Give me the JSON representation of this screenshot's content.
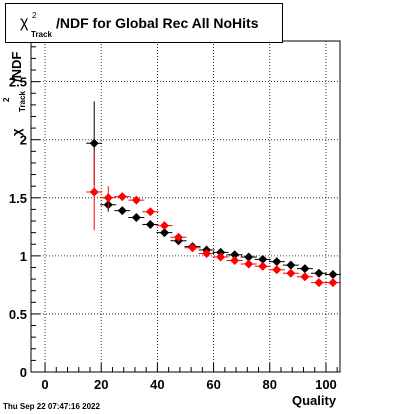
{
  "title": {
    "symbol": "χ",
    "superscript": "2",
    "subscript": "Track",
    "text": "/NDF for Global Rec All NoHits"
  },
  "xlabel": "Quality",
  "ylabel": {
    "symbol": "χ",
    "superscript": "2",
    "subscript": "Track",
    "text": "/NDF"
  },
  "timestamp": "Thu Sep 22 07:47:16 2022",
  "colors": {
    "series_a": "#000000",
    "series_b": "#ff0000",
    "grid": "#000000"
  },
  "chart_data": {
    "type": "scatter",
    "title": "χ²_Track/NDF for Global Rec All NoHits",
    "xlabel": "Quality",
    "ylabel": "χ²_Track/NDF",
    "xlim": [
      -5,
      105
    ],
    "ylim": [
      0,
      2.85
    ],
    "xticks": [
      0,
      20,
      40,
      60,
      80,
      100
    ],
    "yticks": [
      0,
      0.5,
      1,
      1.5,
      2,
      2.5
    ],
    "xtick_labels": [
      "0",
      "20",
      "40",
      "60",
      "80",
      "100"
    ],
    "ytick_labels": [
      "0",
      "0.5",
      "1",
      "1.5",
      "2",
      "2.5"
    ],
    "grid": true,
    "legend": "none",
    "series": [
      {
        "color": "#000000",
        "marker": "diamond",
        "points": [
          {
            "x": 17.5,
            "y": 1.97,
            "err": 0.36
          },
          {
            "x": 22.5,
            "y": 1.44,
            "err": 0.06
          },
          {
            "x": 27.5,
            "y": 1.39,
            "err": 0.02
          },
          {
            "x": 32.5,
            "y": 1.33,
            "err": 0.02
          },
          {
            "x": 37.5,
            "y": 1.27,
            "err": 0.02
          },
          {
            "x": 42.5,
            "y": 1.2,
            "err": 0.02
          },
          {
            "x": 47.5,
            "y": 1.13,
            "err": 0.02
          },
          {
            "x": 52.5,
            "y": 1.08,
            "err": 0.01
          },
          {
            "x": 57.5,
            "y": 1.05,
            "err": 0.01
          },
          {
            "x": 62.5,
            "y": 1.03,
            "err": 0.01
          },
          {
            "x": 67.5,
            "y": 1.01,
            "err": 0.01
          },
          {
            "x": 72.5,
            "y": 0.99,
            "err": 0.01
          },
          {
            "x": 77.5,
            "y": 0.97,
            "err": 0.01
          },
          {
            "x": 82.5,
            "y": 0.95,
            "err": 0.01
          },
          {
            "x": 87.5,
            "y": 0.92,
            "err": 0.01
          },
          {
            "x": 92.5,
            "y": 0.89,
            "err": 0.01
          },
          {
            "x": 97.5,
            "y": 0.85,
            "err": 0.01
          },
          {
            "x": 102.5,
            "y": 0.84,
            "err": 0.01
          }
        ]
      },
      {
        "color": "#ff0000",
        "marker": "diamond",
        "points": [
          {
            "x": 17.5,
            "y": 1.55,
            "err": 0.33
          },
          {
            "x": 22.5,
            "y": 1.5,
            "err": 0.1
          },
          {
            "x": 27.5,
            "y": 1.51,
            "err": 0.03
          },
          {
            "x": 32.5,
            "y": 1.48,
            "err": 0.02
          },
          {
            "x": 37.5,
            "y": 1.38,
            "err": 0.02
          },
          {
            "x": 42.5,
            "y": 1.26,
            "err": 0.02
          },
          {
            "x": 47.5,
            "y": 1.16,
            "err": 0.02
          },
          {
            "x": 52.5,
            "y": 1.07,
            "err": 0.01
          },
          {
            "x": 57.5,
            "y": 1.02,
            "err": 0.01
          },
          {
            "x": 62.5,
            "y": 0.99,
            "err": 0.01
          },
          {
            "x": 67.5,
            "y": 0.96,
            "err": 0.01
          },
          {
            "x": 72.5,
            "y": 0.93,
            "err": 0.01
          },
          {
            "x": 77.5,
            "y": 0.91,
            "err": 0.01
          },
          {
            "x": 82.5,
            "y": 0.88,
            "err": 0.01
          },
          {
            "x": 87.5,
            "y": 0.85,
            "err": 0.01
          },
          {
            "x": 92.5,
            "y": 0.82,
            "err": 0.01
          },
          {
            "x": 97.5,
            "y": 0.77,
            "err": 0.01
          },
          {
            "x": 102.5,
            "y": 0.77,
            "err": 0.01
          }
        ]
      }
    ]
  }
}
